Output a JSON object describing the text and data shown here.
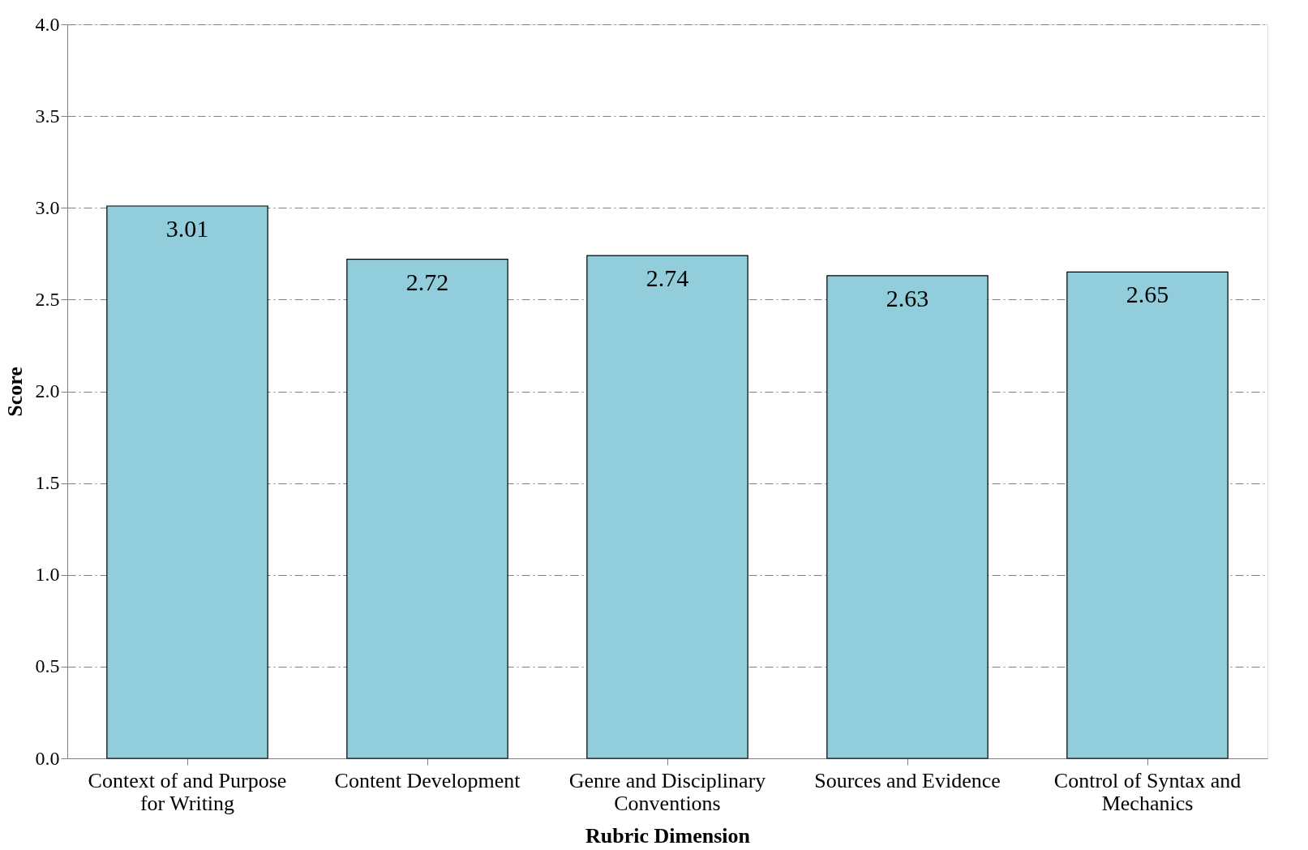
{
  "chart_data": {
    "type": "bar",
    "xlabel": "Rubric Dimension",
    "ylabel": "Score",
    "categories": [
      "Context of and Purpose for Writing",
      "Content Development",
      "Genre and Disciplinary Conventions",
      "Sources and Evidence",
      "Control of Syntax and Mechanics"
    ],
    "values": [
      3.01,
      2.72,
      2.74,
      2.63,
      2.65
    ],
    "color": "#92cddc",
    "data_labels": true,
    "ylim": [
      0,
      4
    ],
    "yticks": [
      {
        "value": 0,
        "label": "0.0"
      },
      0.5,
      {
        "value": 1,
        "label": "1.0"
      },
      1.5,
      {
        "value": 2,
        "label": "2.0"
      },
      2.5,
      {
        "value": 3,
        "label": "3.0"
      },
      3.5,
      {
        "value": 4,
        "label": "4.0"
      }
    ],
    "grid": "y"
  }
}
